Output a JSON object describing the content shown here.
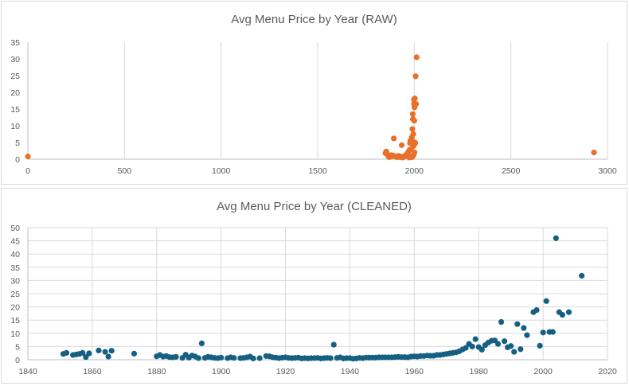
{
  "chart_data": [
    {
      "type": "scatter",
      "title": "Avg Menu Price by Year (RAW)",
      "color": "#e8702a",
      "xlim": [
        0,
        3000
      ],
      "ylim": [
        0,
        35
      ],
      "xticks": [
        0,
        500,
        1000,
        1500,
        2000,
        2500,
        3000
      ],
      "yticks": [
        0,
        5,
        10,
        15,
        20,
        25,
        30,
        35
      ],
      "grid": "vertical",
      "points": [
        [
          0,
          0.8
        ],
        [
          2930,
          2.0
        ],
        [
          1851,
          1.8
        ],
        [
          1855,
          2.3
        ],
        [
          1860,
          1.5
        ],
        [
          1865,
          1.0
        ],
        [
          1870,
          0.6
        ],
        [
          1875,
          0.8
        ],
        [
          1880,
          1.2
        ],
        [
          1885,
          0.9
        ],
        [
          1890,
          1.1
        ],
        [
          1894,
          6.2
        ],
        [
          1900,
          0.9
        ],
        [
          1905,
          0.7
        ],
        [
          1910,
          0.6
        ],
        [
          1915,
          0.9
        ],
        [
          1920,
          1.0
        ],
        [
          1925,
          0.6
        ],
        [
          1930,
          0.7
        ],
        [
          1935,
          4.2
        ],
        [
          1940,
          0.5
        ],
        [
          1945,
          0.8
        ],
        [
          1950,
          0.9
        ],
        [
          1955,
          1.1
        ],
        [
          1960,
          1.4
        ],
        [
          1965,
          1.8
        ],
        [
          1970,
          2.2
        ],
        [
          1975,
          2.8
        ],
        [
          1978,
          4.8
        ],
        [
          1980,
          5.5
        ],
        [
          1983,
          3.0
        ],
        [
          1985,
          5.8
        ],
        [
          1987,
          6.5
        ],
        [
          1988,
          0.6
        ],
        [
          1990,
          9.0
        ],
        [
          1992,
          13.5
        ],
        [
          1993,
          12.0
        ],
        [
          1995,
          7.5
        ],
        [
          1997,
          4.0
        ],
        [
          1998,
          17.8
        ],
        [
          1999,
          16.5
        ],
        [
          2000,
          11.5
        ],
        [
          2001,
          15.5
        ],
        [
          2002,
          16.2
        ],
        [
          2003,
          18.2
        ],
        [
          2004,
          5.0
        ],
        [
          2005,
          4.8
        ],
        [
          2006,
          16.5
        ],
        [
          2007,
          24.8
        ],
        [
          2009,
          16.5
        ],
        [
          2012,
          30.5
        ],
        [
          2001,
          2.0
        ],
        [
          1996,
          1.2
        ],
        [
          1990,
          0.9
        ],
        [
          1975,
          0.5
        ],
        [
          1963,
          0.9
        ]
      ]
    },
    {
      "type": "scatter",
      "title": "Avg Menu Price by Year (CLEANED)",
      "color": "#156082",
      "xlim": [
        1840,
        2020
      ],
      "ylim": [
        0,
        50
      ],
      "xticks": [
        1840,
        1860,
        1880,
        1900,
        1920,
        1940,
        1960,
        1980,
        2000,
        2020
      ],
      "yticks": [
        0,
        5,
        10,
        15,
        20,
        25,
        30,
        35,
        40,
        45,
        50
      ],
      "grid": "both",
      "points": [
        [
          1851,
          2.2
        ],
        [
          1852,
          2.6
        ],
        [
          1854,
          1.8
        ],
        [
          1855,
          2.0
        ],
        [
          1856,
          2.2
        ],
        [
          1857,
          2.6
        ],
        [
          1858,
          1.0
        ],
        [
          1859,
          2.4
        ],
        [
          1862,
          3.5
        ],
        [
          1864,
          3.0
        ],
        [
          1865,
          1.2
        ],
        [
          1866,
          3.4
        ],
        [
          1873,
          2.3
        ],
        [
          1880,
          1.3
        ],
        [
          1881,
          1.8
        ],
        [
          1882,
          1.2
        ],
        [
          1883,
          1.4
        ],
        [
          1884,
          1.0
        ],
        [
          1885,
          0.9
        ],
        [
          1886,
          1.1
        ],
        [
          1888,
          0.7
        ],
        [
          1889,
          1.9
        ],
        [
          1890,
          0.8
        ],
        [
          1891,
          1.6
        ],
        [
          1892,
          1.2
        ],
        [
          1893,
          0.6
        ],
        [
          1894,
          6.2
        ],
        [
          1895,
          0.7
        ],
        [
          1896,
          1.1
        ],
        [
          1897,
          0.9
        ],
        [
          1898,
          0.7
        ],
        [
          1899,
          0.6
        ],
        [
          1900,
          0.8
        ],
        [
          1902,
          0.6
        ],
        [
          1903,
          0.9
        ],
        [
          1904,
          0.7
        ],
        [
          1906,
          0.6
        ],
        [
          1907,
          0.7
        ],
        [
          1908,
          0.9
        ],
        [
          1909,
          1.2
        ],
        [
          1910,
          0.5
        ],
        [
          1912,
          0.6
        ],
        [
          1914,
          1.4
        ],
        [
          1915,
          1.3
        ],
        [
          1916,
          0.9
        ],
        [
          1917,
          0.8
        ],
        [
          1918,
          0.6
        ],
        [
          1919,
          0.8
        ],
        [
          1920,
          0.9
        ],
        [
          1921,
          0.7
        ],
        [
          1922,
          0.6
        ],
        [
          1923,
          0.7
        ],
        [
          1924,
          0.8
        ],
        [
          1925,
          0.5
        ],
        [
          1926,
          0.6
        ],
        [
          1927,
          0.5
        ],
        [
          1928,
          0.6
        ],
        [
          1929,
          0.6
        ],
        [
          1930,
          0.7
        ],
        [
          1931,
          0.5
        ],
        [
          1932,
          0.6
        ],
        [
          1933,
          0.7
        ],
        [
          1934,
          0.6
        ],
        [
          1935,
          5.7
        ],
        [
          1936,
          0.7
        ],
        [
          1937,
          0.9
        ],
        [
          1938,
          0.5
        ],
        [
          1939,
          0.6
        ],
        [
          1940,
          0.6
        ],
        [
          1941,
          0.4
        ],
        [
          1942,
          0.5
        ],
        [
          1943,
          0.7
        ],
        [
          1944,
          0.6
        ],
        [
          1945,
          0.8
        ],
        [
          1946,
          0.8
        ],
        [
          1947,
          0.8
        ],
        [
          1948,
          0.8
        ],
        [
          1949,
          0.9
        ],
        [
          1950,
          0.9
        ],
        [
          1951,
          0.9
        ],
        [
          1952,
          0.9
        ],
        [
          1953,
          0.9
        ],
        [
          1954,
          1.0
        ],
        [
          1955,
          1.1
        ],
        [
          1956,
          1.0
        ],
        [
          1957,
          1.0
        ],
        [
          1958,
          0.9
        ],
        [
          1959,
          1.2
        ],
        [
          1960,
          1.3
        ],
        [
          1961,
          1.2
        ],
        [
          1962,
          1.4
        ],
        [
          1963,
          1.4
        ],
        [
          1964,
          1.6
        ],
        [
          1965,
          1.5
        ],
        [
          1966,
          1.5
        ],
        [
          1967,
          1.8
        ],
        [
          1968,
          1.8
        ],
        [
          1969,
          2.0
        ],
        [
          1970,
          2.2
        ],
        [
          1971,
          2.4
        ],
        [
          1972,
          2.6
        ],
        [
          1973,
          2.8
        ],
        [
          1974,
          3.2
        ],
        [
          1975,
          3.9
        ],
        [
          1976,
          4.5
        ],
        [
          1977,
          6.0
        ],
        [
          1978,
          5.0
        ],
        [
          1979,
          7.8
        ],
        [
          1980,
          4.8
        ],
        [
          1981,
          3.8
        ],
        [
          1982,
          5.5
        ],
        [
          1983,
          6.5
        ],
        [
          1984,
          7.2
        ],
        [
          1985,
          7.3
        ],
        [
          1986,
          6.0
        ],
        [
          1987,
          14.3
        ],
        [
          1988,
          7.0
        ],
        [
          1989,
          4.7
        ],
        [
          1990,
          5.2
        ],
        [
          1991,
          3.0
        ],
        [
          1992,
          13.5
        ],
        [
          1993,
          4.0
        ],
        [
          1994,
          12.0
        ],
        [
          1995,
          9.3
        ],
        [
          1997,
          18.0
        ],
        [
          1998,
          18.8
        ],
        [
          1999,
          5.3
        ],
        [
          2000,
          10.3
        ],
        [
          2001,
          22.2
        ],
        [
          2002,
          10.5
        ],
        [
          2003,
          10.5
        ],
        [
          2004,
          46.0
        ],
        [
          2005,
          18.0
        ],
        [
          2006,
          17.0
        ],
        [
          2008,
          18.0
        ],
        [
          2012,
          31.8
        ]
      ]
    }
  ]
}
